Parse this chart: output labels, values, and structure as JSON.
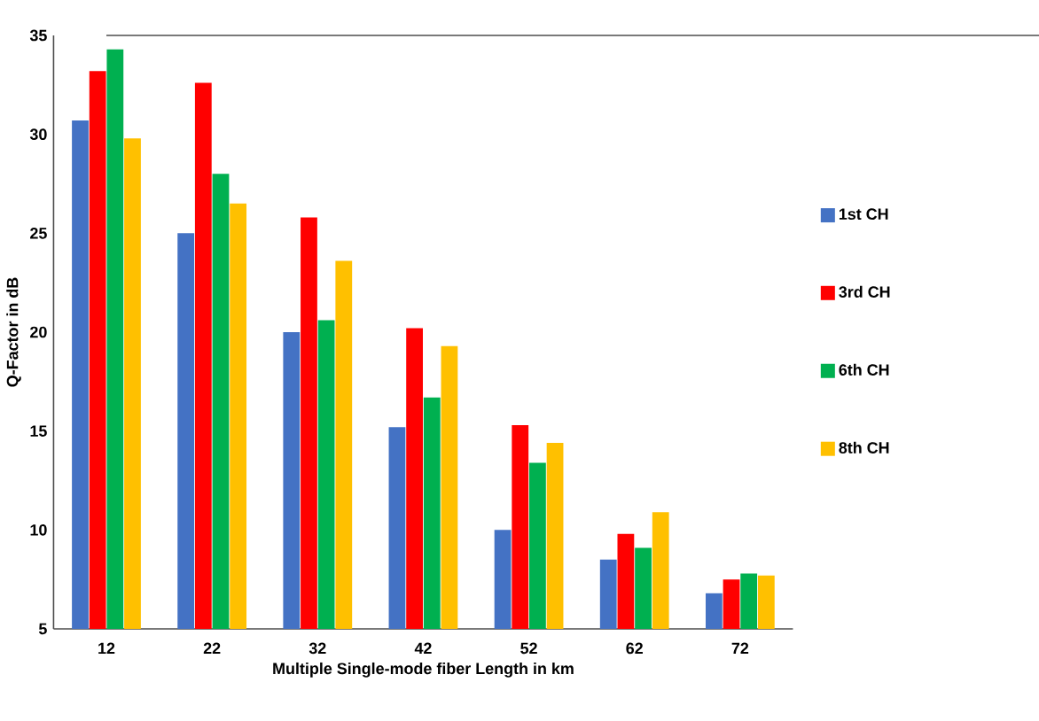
{
  "chart_data": {
    "type": "bar",
    "xlabel": "Multiple Single-mode fiber Length in km",
    "ylabel": "Q-Factor in dB",
    "categories": [
      "12",
      "22",
      "32",
      "42",
      "52",
      "62",
      "72"
    ],
    "series": [
      {
        "name": "1st CH",
        "color": "#4472c4",
        "values": [
          30.7,
          25.0,
          20.0,
          15.2,
          10.0,
          8.5,
          6.8
        ]
      },
      {
        "name": "3rd CH",
        "color": "#ff0000",
        "values": [
          33.2,
          32.6,
          25.8,
          20.2,
          15.3,
          9.8,
          7.5
        ]
      },
      {
        "name": "6th CH",
        "color": "#00b050",
        "values": [
          34.3,
          28.0,
          20.6,
          16.7,
          13.4,
          9.1,
          7.8
        ]
      },
      {
        "name": "8th CH",
        "color": "#ffc000",
        "values": [
          29.8,
          26.5,
          23.6,
          19.3,
          14.4,
          10.9,
          7.7
        ]
      }
    ],
    "ylim": [
      5,
      35
    ],
    "yticks": [
      5,
      10,
      15,
      20,
      25,
      30,
      35
    ],
    "grid": false,
    "legend": "right"
  }
}
